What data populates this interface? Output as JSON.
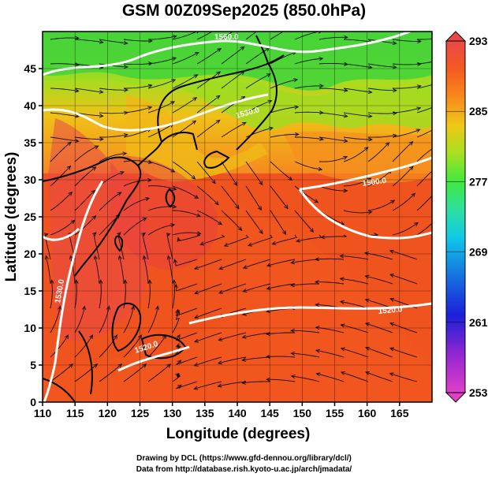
{
  "title": "GSM 00Z09Sep2025 (850.0hPa)",
  "x_axis": {
    "label": "Longitude (degrees)",
    "range": [
      110,
      170
    ],
    "ticks": [
      "110",
      "115",
      "120",
      "125",
      "130",
      "135",
      "140",
      "145",
      "150",
      "155",
      "160",
      "165"
    ]
  },
  "y_axis": {
    "label": "Latitude  (degrees)",
    "range": [
      0,
      50
    ],
    "ticks": [
      "0",
      "5",
      "10",
      "15",
      "20",
      "25",
      "30",
      "35",
      "40",
      "45"
    ]
  },
  "colorbar": {
    "ticks": [
      "293",
      "285",
      "277",
      "269",
      "261",
      "253"
    ],
    "range": [
      253,
      293
    ],
    "colors": [
      "#e040c8",
      "#7a1fd0",
      "#1b1fd8",
      "#1478e0",
      "#10c8e8",
      "#2ee0a0",
      "#40e840",
      "#a8e020",
      "#f0c818",
      "#f88a1c",
      "#f45a20",
      "#ea4040",
      "#f06a6a"
    ]
  },
  "contour_labels": [
    "1560.0",
    "1530.0",
    "1500.0",
    "1520.0",
    "1520.0",
    "1530.0"
  ],
  "credits": {
    "line1": "Drawing by DCL (https://www.gfd-dennou.org/library/dcl/)",
    "line2": "Data from http://database.rish.kyoto-u.ac.jp/arch/jmadata/"
  },
  "colors": {
    "warm": "#f0501e",
    "hot": "#e83c3c",
    "orange": "#f58220",
    "yellow": "#f0c018",
    "green": "#58d830"
  }
}
